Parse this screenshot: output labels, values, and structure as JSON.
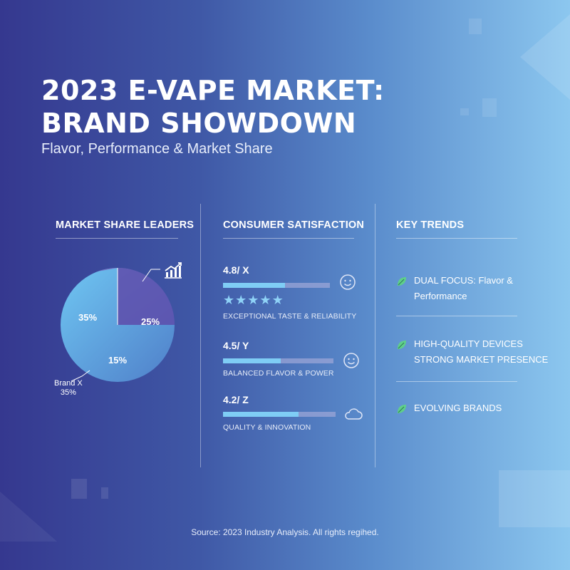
{
  "header": {
    "title_line1": "2023 E-VAPE MARKET:",
    "title_line2": "BRAND SHOWDOWN",
    "subtitle": "Flavor, Performance & Market Share"
  },
  "market_share": {
    "heading": "MARKET SHARE LEADERS",
    "labels": [
      "35%",
      "25%",
      "15%"
    ],
    "callout_name": "Brand X",
    "callout_value": "35%",
    "icon": "growth-chart-icon"
  },
  "satisfaction": {
    "heading": "CONSUMER SATISFACTION",
    "items": [
      {
        "score": "4.8/ X",
        "fill": 0.58,
        "caption": "EXCEPTIONAL TASTE & RELIABILITY",
        "icon": "smiley-icon",
        "stars": 5
      },
      {
        "score": "4.5/ Y",
        "fill": 0.52,
        "caption": "BALANCED FLAVOR & POWER",
        "icon": "smiley-icon"
      },
      {
        "score": "4.2/ Z",
        "fill": 0.67,
        "caption": "QUALITY & INNOVATION",
        "icon": "cloud-icon"
      }
    ]
  },
  "trends": {
    "heading": "KEY TRENDS",
    "items": [
      {
        "line1": "DUAL FOCUS: Flavor &",
        "line2": "Performance"
      },
      {
        "line1": "HIGH-QUALITY DEVICES",
        "line2": "STRONG MARKET PRESENCE"
      },
      {
        "line1": "EVOLVING BRANDS",
        "line2": ""
      }
    ]
  },
  "footer": {
    "source": "Source: 2023 Industry Analysis. All rights regihed."
  },
  "colors": {
    "accent_bar": "#7fcdf5",
    "leaf": "#5fcf8a",
    "star": "#8fd2f7"
  }
}
